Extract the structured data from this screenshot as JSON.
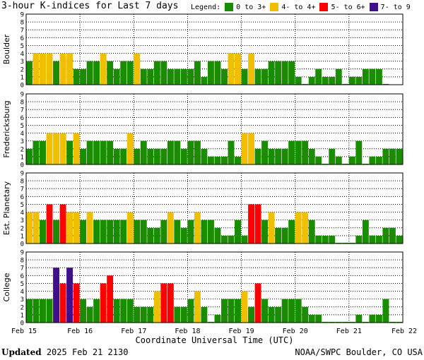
{
  "header": {
    "title": "3-hour K-indices for Last 7 days"
  },
  "legend": {
    "label": "Legend:",
    "items": [
      {
        "label": "0 to 3+",
        "color": "#1a8c00",
        "icon": "green-swatch"
      },
      {
        "label": "4- to 4+",
        "color": "#f0c000",
        "icon": "yellow-swatch"
      },
      {
        "label": "5- to 6+",
        "color": "#ff0000",
        "icon": "red-swatch"
      },
      {
        "label": "7- to 9",
        "color": "#40108c",
        "icon": "purple-swatch"
      }
    ]
  },
  "footer": {
    "updated_label": "Updated",
    "updated_value": "2025 Feb 21 2130",
    "source": "NOAA/SWPC Boulder, CO USA"
  },
  "chart_data": {
    "type": "bar",
    "xlabel": "Coordinate Universal Time (UTC)",
    "x_ticks": [
      "Feb 15",
      "Feb 16",
      "Feb 17",
      "Feb 18",
      "Feb 19",
      "Feb 20",
      "Feb 21",
      "Feb 22"
    ],
    "ylim": [
      0,
      9
    ],
    "y_ticks": [
      0,
      1,
      2,
      3,
      4,
      5,
      6,
      7,
      8,
      9
    ],
    "grid": true,
    "panels": [
      {
        "name": "Boulder",
        "values": [
          3,
          4,
          4,
          4,
          3,
          4,
          4,
          2,
          2,
          3,
          3,
          4,
          3,
          2,
          3,
          3,
          4,
          2,
          2,
          3,
          3,
          2,
          2,
          2,
          2,
          3,
          1,
          3,
          3,
          2,
          4,
          4,
          2,
          4,
          2,
          2,
          3,
          3,
          3,
          3,
          1,
          0,
          1,
          2,
          1,
          1,
          2,
          0,
          1,
          1,
          2,
          2,
          2,
          0
        ]
      },
      {
        "name": "Fredericksburg",
        "values": [
          2,
          3,
          3,
          4,
          4,
          4,
          3,
          4,
          2,
          3,
          3,
          3,
          3,
          2,
          2,
          4,
          2,
          3,
          2,
          2,
          2,
          3,
          3,
          2,
          3,
          3,
          2,
          1,
          1,
          1,
          3,
          1,
          4,
          4,
          2,
          3,
          2,
          2,
          2,
          3,
          3,
          3,
          2,
          1,
          0,
          2,
          1,
          0,
          1,
          3,
          0,
          1,
          1,
          2,
          2,
          2,
          0
        ]
      },
      {
        "name": "Est. Planetary",
        "values": [
          4,
          4,
          3,
          5,
          3,
          5,
          4,
          4,
          3,
          4,
          3,
          3,
          3,
          3,
          3,
          4,
          3,
          3,
          2,
          2,
          3,
          4,
          3,
          2,
          3,
          4,
          3,
          3,
          2,
          1,
          1,
          3,
          1,
          5,
          5,
          3,
          4,
          2,
          2,
          3,
          4,
          4,
          3,
          1,
          1,
          1,
          0,
          0,
          0,
          1,
          3,
          1,
          1,
          2,
          2,
          1,
          1
        ]
      },
      {
        "name": "College",
        "values": [
          3,
          3,
          3,
          3,
          7,
          5,
          7,
          5,
          3,
          2,
          3,
          5,
          6,
          3,
          3,
          3,
          2,
          2,
          2,
          4,
          5,
          5,
          2,
          2,
          3,
          4,
          2,
          0,
          1,
          3,
          3,
          3,
          4,
          2,
          5,
          3,
          2,
          2,
          3,
          3,
          3,
          2,
          1,
          1,
          0,
          0,
          0,
          0,
          0,
          1,
          0,
          1,
          1,
          3,
          0,
          0,
          0
        ]
      }
    ]
  }
}
